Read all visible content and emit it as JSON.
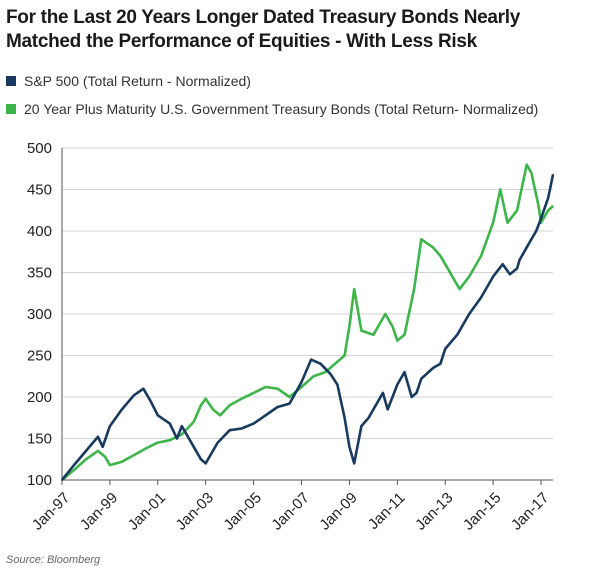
{
  "title": "For the Last 20 Years Longer Dated Treasury Bonds Nearly Matched the Performance of Equities - With Less Risk",
  "source": "Source: Bloomberg",
  "chart_data": {
    "type": "line",
    "title": "For the Last 20 Years Longer Dated Treasury Bonds Nearly Matched the Performance of Equities - With Less Risk",
    "xlabel": "",
    "ylabel": "",
    "xlim": [
      1997.0,
      2017.5
    ],
    "ylim": [
      100,
      500
    ],
    "x_tick_labels": [
      "Jan-97",
      "Jan-99",
      "Jan-01",
      "Jan-03",
      "Jan-05",
      "Jan-07",
      "Jan-09",
      "Jan-11",
      "Jan-13",
      "Jan-15",
      "Jan-17"
    ],
    "x_tick_positions": [
      1997,
      1999,
      2001,
      2003,
      2005,
      2007,
      2009,
      2011,
      2013,
      2015,
      2017
    ],
    "y_ticks": [
      100,
      150,
      200,
      250,
      300,
      350,
      400,
      450,
      500
    ],
    "grid": "horizontal",
    "legend_position": "top-left",
    "series": [
      {
        "name": "S&P 500 (Total Return - Normalized)",
        "color": "#173a5e",
        "x": [
          1997.0,
          1997.5,
          1998.0,
          1998.5,
          1998.7,
          1999.0,
          1999.5,
          2000.0,
          2000.4,
          2000.7,
          2001.0,
          2001.5,
          2001.8,
          2002.0,
          2002.5,
          2002.8,
          2003.0,
          2003.3,
          2003.5,
          2004.0,
          2004.5,
          2005.0,
          2005.5,
          2006.0,
          2006.5,
          2007.0,
          2007.4,
          2007.8,
          2008.2,
          2008.5,
          2008.8,
          2009.0,
          2009.2,
          2009.5,
          2009.8,
          2010.0,
          2010.4,
          2010.6,
          2011.0,
          2011.3,
          2011.6,
          2011.8,
          2012.0,
          2012.5,
          2012.8,
          2013.0,
          2013.5,
          2014.0,
          2014.5,
          2015.0,
          2015.4,
          2015.7,
          2016.0,
          2016.1,
          2016.5,
          2016.8,
          2017.0,
          2017.3,
          2017.5
        ],
        "y": [
          100,
          118,
          135,
          152,
          140,
          165,
          185,
          202,
          210,
          195,
          178,
          168,
          150,
          165,
          140,
          125,
          120,
          135,
          145,
          160,
          162,
          168,
          178,
          188,
          192,
          218,
          245,
          240,
          228,
          215,
          175,
          140,
          120,
          165,
          175,
          185,
          205,
          185,
          215,
          230,
          200,
          205,
          222,
          235,
          240,
          258,
          275,
          300,
          320,
          345,
          360,
          348,
          355,
          365,
          385,
          400,
          415,
          440,
          468
        ],
        "final_label": ""
      },
      {
        "name": "20 Year Plus Maturity U.S. Government Treasury Bonds (Total Return- Normalized)",
        "color": "#3db54a",
        "x": [
          1997.0,
          1997.5,
          1998.0,
          1998.5,
          1998.8,
          1999.0,
          1999.5,
          2000.0,
          2000.5,
          2001.0,
          2001.5,
          2002.0,
          2002.5,
          2002.8,
          2003.0,
          2003.3,
          2003.6,
          2004.0,
          2004.5,
          2005.0,
          2005.5,
          2006.0,
          2006.5,
          2007.0,
          2007.5,
          2008.0,
          2008.4,
          2008.8,
          2009.0,
          2009.2,
          2009.5,
          2010.0,
          2010.5,
          2010.8,
          2011.0,
          2011.3,
          2011.7,
          2012.0,
          2012.5,
          2012.8,
          2013.0,
          2013.3,
          2013.6,
          2014.0,
          2014.5,
          2015.0,
          2015.3,
          2015.6,
          2016.0,
          2016.4,
          2016.6,
          2016.9,
          2017.0,
          2017.3,
          2017.5
        ],
        "y": [
          100,
          112,
          125,
          135,
          128,
          118,
          122,
          130,
          138,
          145,
          148,
          155,
          170,
          190,
          198,
          185,
          178,
          190,
          198,
          205,
          212,
          210,
          200,
          212,
          225,
          230,
          240,
          250,
          285,
          330,
          280,
          275,
          300,
          285,
          268,
          275,
          330,
          390,
          380,
          370,
          360,
          345,
          330,
          345,
          370,
          410,
          450,
          410,
          425,
          480,
          470,
          430,
          410,
          425,
          430
        ],
        "final_label": ""
      }
    ]
  }
}
